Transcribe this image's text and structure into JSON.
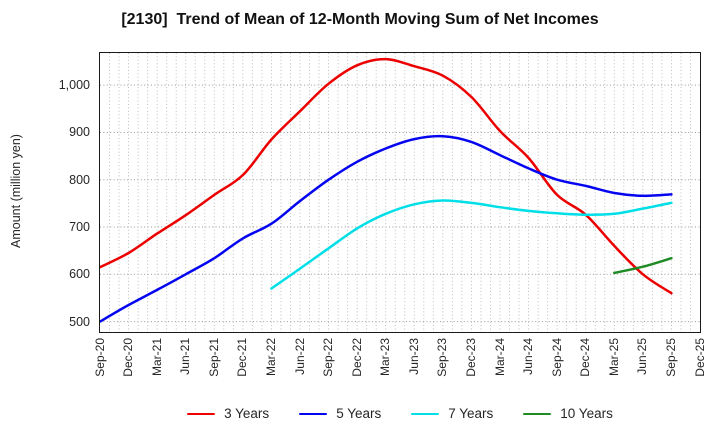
{
  "title": "[2130]  Trend of Mean of 12-Month Moving Sum of Net Incomes",
  "y_axis": {
    "label": "Amount (million yen)",
    "ticks": [
      {
        "value": 500,
        "label": "500"
      },
      {
        "value": 600,
        "label": "600"
      },
      {
        "value": 700,
        "label": "700"
      },
      {
        "value": 800,
        "label": "800"
      },
      {
        "value": 900,
        "label": "900"
      },
      {
        "value": 1000,
        "label": "1,000"
      }
    ]
  },
  "legend_items": [
    "3 Years",
    "5 Years",
    "7 Years",
    "10 Years"
  ],
  "chart_data": {
    "type": "line",
    "title": "[2130]  Trend of Mean of 12-Month Moving Sum of Net Incomes",
    "xlabel": "",
    "ylabel": "Amount (million yen)",
    "ylim": [
      478,
      1068
    ],
    "grid": true,
    "legend_position": "bottom-center",
    "x_minor_per_interval": 3,
    "categories": [
      "Sep-20",
      "Dec-20",
      "Mar-21",
      "Jun-21",
      "Sep-21",
      "Dec-21",
      "Mar-22",
      "Jun-22",
      "Sep-22",
      "Dec-22",
      "Mar-23",
      "Jun-23",
      "Sep-23",
      "Dec-23",
      "Mar-24",
      "Jun-24",
      "Sep-24",
      "Dec-24",
      "Mar-25",
      "Jun-25",
      "Sep-25",
      "Dec-25"
    ],
    "series": [
      {
        "name": "3 Years",
        "color": "#ec0000",
        "values": [
          615,
          645,
          686,
          725,
          768,
          810,
          885,
          945,
          1003,
          1042,
          1055,
          1040,
          1020,
          975,
          903,
          846,
          768,
          726,
          660,
          600,
          560,
          null
        ]
      },
      {
        "name": "5 Years",
        "color": "#0505f0",
        "values": [
          500,
          535,
          567,
          600,
          634,
          676,
          707,
          755,
          800,
          838,
          866,
          886,
          892,
          880,
          852,
          824,
          800,
          787,
          772,
          766,
          769,
          null
        ]
      },
      {
        "name": "7 Years",
        "color": "#00dfe8",
        "values": [
          null,
          null,
          null,
          null,
          null,
          null,
          570,
          612,
          655,
          697,
          728,
          748,
          756,
          751,
          742,
          734,
          729,
          726,
          728,
          739,
          751,
          null
        ]
      },
      {
        "name": "10 Years",
        "color": "#1f8b24",
        "values": [
          null,
          null,
          null,
          null,
          null,
          null,
          null,
          null,
          null,
          null,
          null,
          null,
          null,
          null,
          null,
          null,
          null,
          null,
          603,
          616,
          634,
          null
        ]
      }
    ],
    "style": {
      "plot_border": "#1a1a1a",
      "minor_grid": "#b8b8b8",
      "major_grid": "#999999",
      "tick_text": "#262626",
      "background": "#ffffff"
    }
  }
}
